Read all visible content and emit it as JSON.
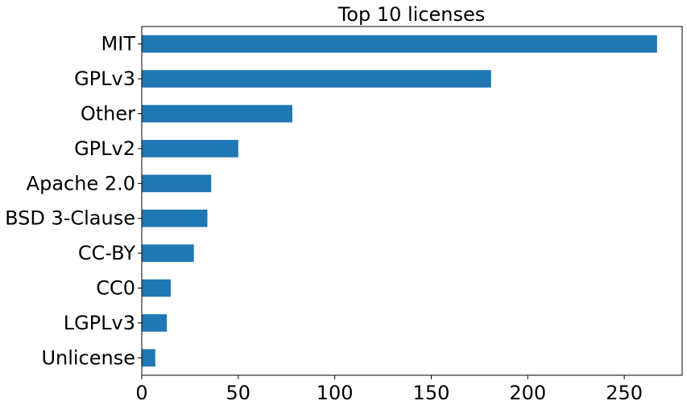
{
  "chart_data": {
    "type": "bar",
    "orientation": "horizontal",
    "title": "Top 10 licenses",
    "xlabel": "",
    "ylabel": "",
    "categories": [
      "MIT",
      "GPLv3",
      "Other",
      "GPLv2",
      "Apache 2.0",
      "BSD 3-Clause",
      "CC-BY",
      "CC0",
      "LGPLv3",
      "Unlicense"
    ],
    "values": [
      267,
      181,
      78,
      50,
      36,
      34,
      27,
      15,
      13,
      7
    ],
    "xlim": [
      0,
      280
    ],
    "xticks": [
      0,
      50,
      100,
      150,
      200,
      250
    ],
    "bar_color": "#1f77b4",
    "grid": false,
    "legend": "none"
  }
}
